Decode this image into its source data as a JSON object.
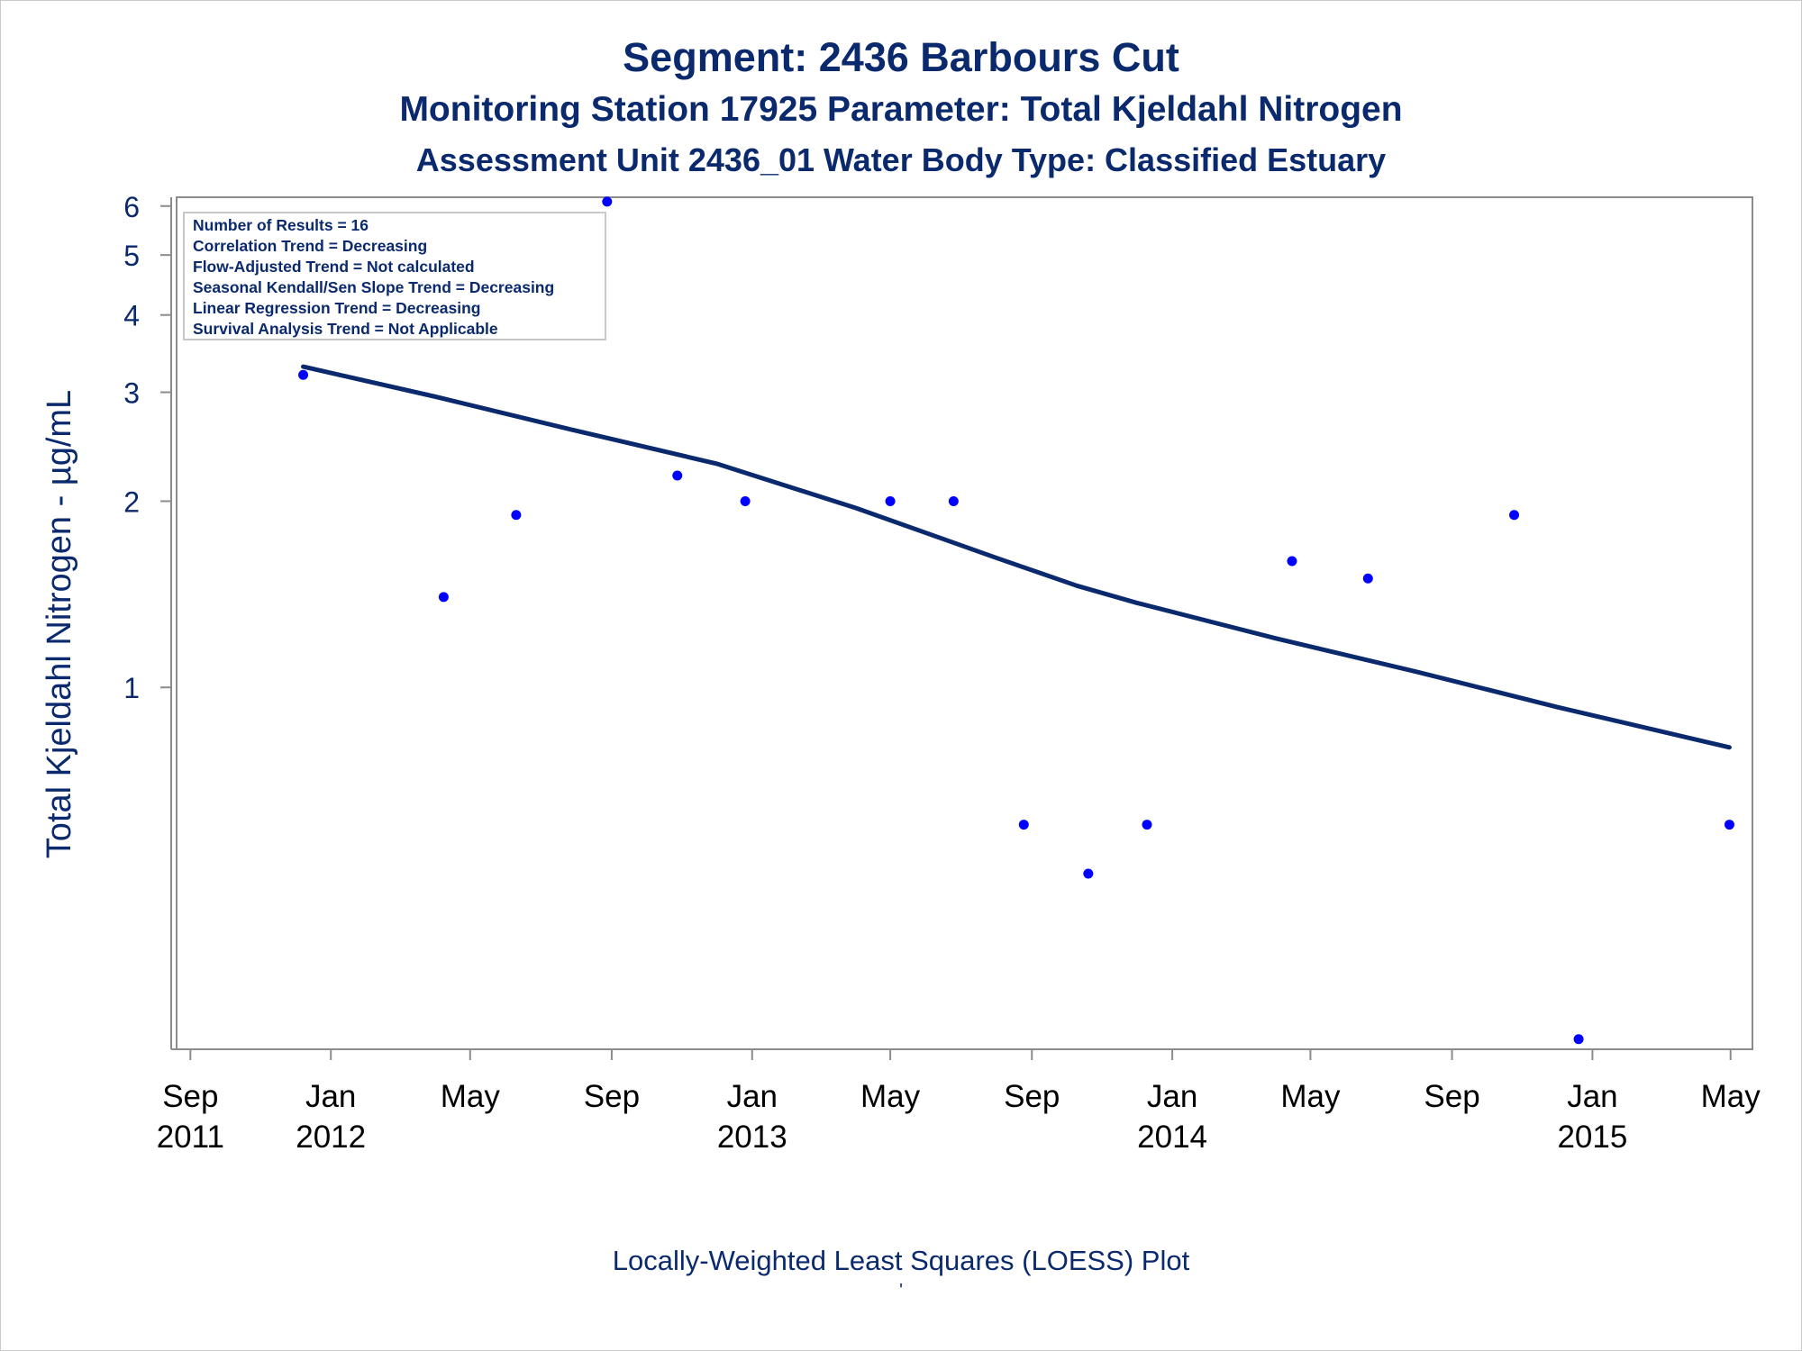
{
  "titles": {
    "title": "Segment: 2436  Barbours Cut",
    "subtitle1": "Monitoring Station 17925 Parameter: Total Kjeldahl Nitrogen",
    "subtitle2": "Assessment Unit 2436_01   Water Body Type: Classified Estuary",
    "footnote": "Locally-Weighted Least Squares (LOESS) Plot",
    "footnote_mark": "'"
  },
  "stats_box": [
    "Number of Results = 16",
    "Correlation Trend = Decreasing",
    "Flow-Adjusted Trend = Not calculated",
    "Seasonal Kendall/Sen Slope Trend = Decreasing",
    "Linear Regression Trend = Decreasing",
    "Survival Analysis Trend = Not Applicable"
  ],
  "colors": {
    "text": "#0b2a6e",
    "points": "#0000ff",
    "loess_line": "#0b2a6e",
    "frame": "#8c8c8c"
  },
  "chart_data": {
    "type": "scatter",
    "title": "Segment: 2436  Barbours Cut",
    "ylabel": "Total Kjeldahl Nitrogen -  µg/mL",
    "xlabel": "",
    "y_scale": "log",
    "ylim": [
      0.26,
      6.2
    ],
    "xlim": [
      "2011-08-20",
      "2015-05-20"
    ],
    "y_ticks": [
      1,
      2,
      3,
      4,
      5,
      6
    ],
    "x_ticks": [
      {
        "date": "2011-09-01",
        "month": "Sep",
        "year": "2011"
      },
      {
        "date": "2012-01-01",
        "month": "Jan",
        "year": "2012"
      },
      {
        "date": "2012-05-01",
        "month": "May",
        "year": ""
      },
      {
        "date": "2012-09-01",
        "month": "Sep",
        "year": ""
      },
      {
        "date": "2013-01-01",
        "month": "Jan",
        "year": "2013"
      },
      {
        "date": "2013-05-01",
        "month": "May",
        "year": ""
      },
      {
        "date": "2013-09-01",
        "month": "Sep",
        "year": ""
      },
      {
        "date": "2014-01-01",
        "month": "Jan",
        "year": "2014"
      },
      {
        "date": "2014-05-01",
        "month": "May",
        "year": ""
      },
      {
        "date": "2014-09-01",
        "month": "Sep",
        "year": ""
      },
      {
        "date": "2015-01-01",
        "month": "Jan",
        "year": "2015"
      },
      {
        "date": "2015-05-01",
        "month": "May",
        "year": ""
      }
    ],
    "points": [
      {
        "x": "2011-12-08",
        "y": 3.2
      },
      {
        "x": "2012-04-08",
        "y": 1.4
      },
      {
        "x": "2012-06-10",
        "y": 1.9
      },
      {
        "x": "2012-08-28",
        "y": 6.1
      },
      {
        "x": "2012-10-28",
        "y": 2.2
      },
      {
        "x": "2012-12-26",
        "y": 2.0
      },
      {
        "x": "2013-05-01",
        "y": 2.0
      },
      {
        "x": "2013-06-25",
        "y": 2.0
      },
      {
        "x": "2013-08-25",
        "y": 0.6
      },
      {
        "x": "2013-10-20",
        "y": 0.5
      },
      {
        "x": "2013-12-10",
        "y": 0.6
      },
      {
        "x": "2014-04-15",
        "y": 1.6
      },
      {
        "x": "2014-06-20",
        "y": 1.5
      },
      {
        "x": "2014-10-25",
        "y": 1.9
      },
      {
        "x": "2014-12-20",
        "y": 0.27
      },
      {
        "x": "2015-04-30",
        "y": 0.6
      }
    ],
    "loess_line": [
      {
        "x": "2011-12-08",
        "y": 3.3
      },
      {
        "x": "2012-04-01",
        "y": 2.95
      },
      {
        "x": "2012-08-01",
        "y": 2.6
      },
      {
        "x": "2012-12-01",
        "y": 2.3
      },
      {
        "x": "2013-04-01",
        "y": 1.95
      },
      {
        "x": "2013-08-01",
        "y": 1.62
      },
      {
        "x": "2013-10-10",
        "y": 1.46
      },
      {
        "x": "2013-12-01",
        "y": 1.37
      },
      {
        "x": "2014-04-01",
        "y": 1.2
      },
      {
        "x": "2014-08-01",
        "y": 1.06
      },
      {
        "x": "2014-12-01",
        "y": 0.93
      },
      {
        "x": "2015-04-30",
        "y": 0.8
      }
    ]
  }
}
